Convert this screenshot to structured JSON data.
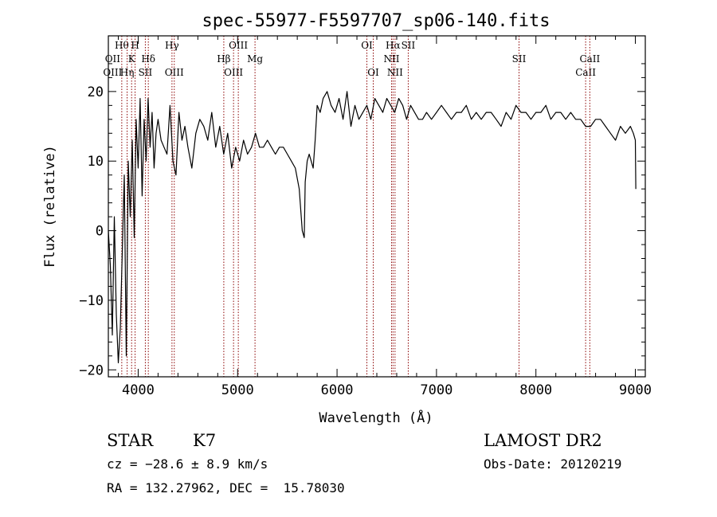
{
  "chart_data": {
    "type": "line",
    "title": "spec-55977-F5597707_sp06-140.fits",
    "xlabel": "Wavelength (Å)",
    "ylabel": "Flux (relative)",
    "xlim": [
      3700,
      9100
    ],
    "ylim": [
      -21,
      28
    ],
    "xticks": [
      4000,
      5000,
      6000,
      7000,
      8000,
      9000
    ],
    "yticks": [
      -20,
      -10,
      0,
      10,
      20
    ],
    "grid": false,
    "line_color": "#000000",
    "marker_line_color": "#8b0000",
    "series": [
      {
        "x": [
          3700,
          3720,
          3740,
          3760,
          3780,
          3800,
          3820,
          3840,
          3860,
          3880,
          3900,
          3920,
          3940,
          3960,
          3980,
          4000,
          4020,
          4040,
          4060,
          4080,
          4100,
          4120,
          4140,
          4160,
          4180,
          4200,
          4230,
          4260,
          4290,
          4320,
          4350,
          4380,
          4410,
          4440,
          4470,
          4500,
          4540,
          4580,
          4620,
          4660,
          4700,
          4740,
          4780,
          4820,
          4860,
          4900,
          4940,
          4980,
          5020,
          5060,
          5100,
          5140,
          5180,
          5220,
          5260,
          5300,
          5340,
          5380,
          5420,
          5460,
          5500,
          5540,
          5580,
          5620,
          5650,
          5670,
          5680,
          5700,
          5720,
          5740,
          5760,
          5780,
          5800,
          5830,
          5860,
          5900,
          5940,
          5980,
          6020,
          6060,
          6100,
          6140,
          6180,
          6220,
          6260,
          6300,
          6340,
          6380,
          6420,
          6460,
          6500,
          6540,
          6580,
          6620,
          6660,
          6700,
          6740,
          6780,
          6820,
          6860,
          6900,
          6950,
          7000,
          7050,
          7100,
          7150,
          7200,
          7250,
          7300,
          7350,
          7400,
          7450,
          7500,
          7550,
          7600,
          7650,
          7700,
          7750,
          7800,
          7850,
          7900,
          7950,
          8000,
          8050,
          8100,
          8150,
          8200,
          8250,
          8300,
          8350,
          8400,
          8450,
          8500,
          8550,
          8600,
          8650,
          8700,
          8750,
          8800,
          8850,
          8900,
          8950,
          8980,
          9000,
          9005
        ],
        "y": [
          0,
          -5,
          -15,
          2,
          -12,
          -19,
          -14,
          -3,
          8,
          -18,
          10,
          2,
          13,
          -1,
          16,
          9,
          19,
          5,
          16,
          10,
          19,
          12,
          17,
          9,
          14,
          16,
          13,
          12,
          11,
          18,
          10,
          8,
          17,
          13,
          15,
          12,
          9,
          14,
          16,
          15,
          13,
          17,
          12,
          15,
          11,
          14,
          9,
          12,
          10,
          13,
          11,
          12,
          14,
          12,
          12,
          13,
          12,
          11,
          12,
          12,
          11,
          10,
          9,
          6,
          0,
          -1,
          7,
          10,
          11,
          10,
          9,
          13,
          18,
          17,
          19,
          20,
          18,
          17,
          19,
          16,
          20,
          15,
          18,
          16,
          17,
          18,
          16,
          19,
          18,
          17,
          19,
          18,
          17,
          19,
          18,
          16,
          18,
          17,
          16,
          16,
          17,
          16,
          17,
          18,
          17,
          16,
          17,
          17,
          18,
          16,
          17,
          16,
          17,
          17,
          16,
          15,
          17,
          16,
          18,
          17,
          17,
          16,
          17,
          17,
          18,
          16,
          17,
          17,
          16,
          17,
          16,
          16,
          15,
          15,
          16,
          16,
          15,
          14,
          13,
          15,
          14,
          15,
          14,
          13,
          6
        ]
      }
    ],
    "line_markers": [
      {
        "x": 3835,
        "label": "Hθ",
        "row": 0
      },
      {
        "x": 3889,
        "label": "Hη",
        "row": 2
      },
      {
        "x": 3934,
        "label": "K",
        "row": 1
      },
      {
        "x": 3969,
        "label": "H",
        "row": 0
      },
      {
        "x": 4072,
        "label": "SII",
        "row": 2
      },
      {
        "x": 4102,
        "label": "Hδ",
        "row": 1
      },
      {
        "x": 4340,
        "label": "Hγ",
        "row": 0
      },
      {
        "x": 4363,
        "label": "OIII",
        "row": 2
      },
      {
        "x": 4861,
        "label": "Hβ",
        "row": 1
      },
      {
        "x": 4959,
        "label": "OIII",
        "row": 2
      },
      {
        "x": 5007,
        "label": "OIII",
        "row": 0
      },
      {
        "x": 5175,
        "label": "Mg",
        "row": 1
      },
      {
        "x": 6300,
        "label": "OI",
        "row": 0
      },
      {
        "x": 6364,
        "label": "OI",
        "row": 2
      },
      {
        "x": 6548,
        "label": "NII",
        "row": 1
      },
      {
        "x": 6563,
        "label": "Hα",
        "row": 0
      },
      {
        "x": 6583,
        "label": "NII",
        "row": 2
      },
      {
        "x": 6716,
        "label": "SII",
        "row": 0
      },
      {
        "x": 7830,
        "label": "SII",
        "row": 1
      },
      {
        "x": 8500,
        "label": "CaII",
        "row": 2
      },
      {
        "x": 8542,
        "label": "CaII",
        "row": 1
      }
    ],
    "extra_marker_labels": [
      {
        "label": "OII",
        "x": 3727,
        "row": 1
      },
      {
        "label": "OIII",
        "x": 3727,
        "row": 2
      }
    ]
  },
  "info": {
    "object_class": "STAR",
    "subclass": "K7",
    "survey": "LAMOST DR2",
    "cz": "cz = −28.6 ± 8.9 km/s",
    "obs_date": "Obs-Date: 20120219",
    "radec": "RA = 132.27962, DEC =  15.78030"
  }
}
